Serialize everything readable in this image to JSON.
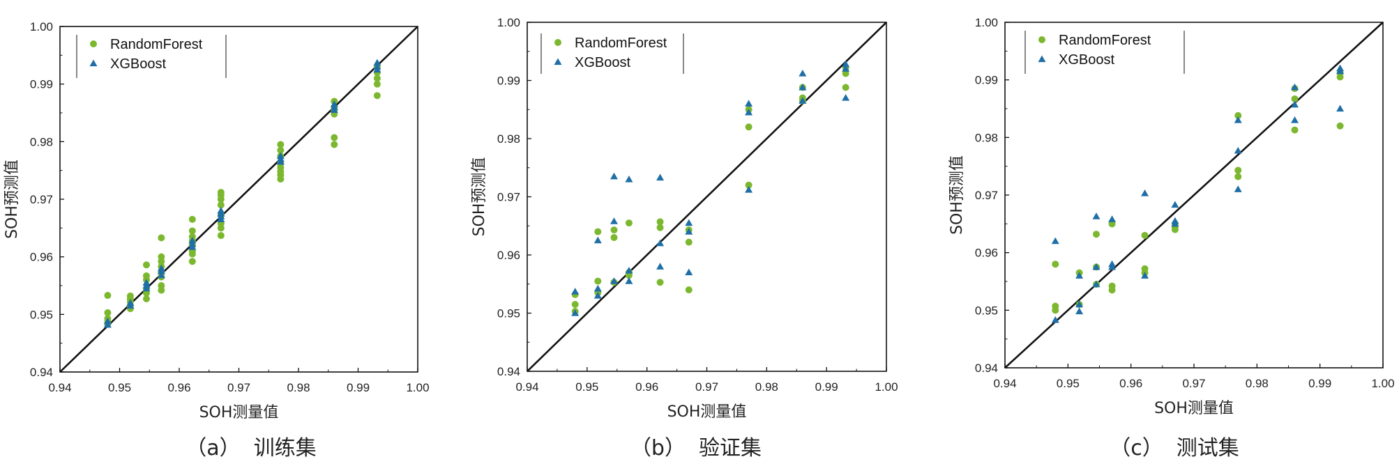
{
  "figure": {
    "captions": [
      "（a）  训练集",
      "（b）  验证集",
      "（c）  测试集"
    ]
  },
  "chart_data": [
    {
      "type": "scatter",
      "title": "",
      "xlabel": "SOH测量值",
      "ylabel": "SOH预测值",
      "xlim": [
        0.94,
        1.0
      ],
      "ylim": [
        0.94,
        1.0
      ],
      "xticks": [
        "0.94",
        "0.95",
        "0.96",
        "0.97",
        "0.98",
        "0.99",
        "1.00"
      ],
      "yticks": [
        "0.94",
        "0.95",
        "0.96",
        "0.97",
        "0.98",
        "0.99",
        "1.00"
      ],
      "reference_line": "y = x",
      "legend_position": "top-left",
      "grid": false,
      "series": [
        {
          "name": "RandomForest",
          "marker": "circle",
          "color": "#7cb82f",
          "points": [
            [
              0.948,
              0.9533
            ],
            [
              0.948,
              0.9503
            ],
            [
              0.948,
              0.9493
            ],
            [
              0.948,
              0.9487
            ],
            [
              0.948,
              0.9483
            ],
            [
              0.9518,
              0.9532
            ],
            [
              0.9518,
              0.9527
            ],
            [
              0.9518,
              0.9522
            ],
            [
              0.9518,
              0.9515
            ],
            [
              0.9518,
              0.951
            ],
            [
              0.9545,
              0.9586
            ],
            [
              0.9545,
              0.9567
            ],
            [
              0.9545,
              0.956
            ],
            [
              0.9545,
              0.9545
            ],
            [
              0.9545,
              0.9537
            ],
            [
              0.9545,
              0.9527
            ],
            [
              0.957,
              0.9633
            ],
            [
              0.957,
              0.96
            ],
            [
              0.957,
              0.9592
            ],
            [
              0.957,
              0.9583
            ],
            [
              0.957,
              0.9572
            ],
            [
              0.957,
              0.9565
            ],
            [
              0.957,
              0.955
            ],
            [
              0.957,
              0.9542
            ],
            [
              0.9622,
              0.9665
            ],
            [
              0.9622,
              0.9645
            ],
            [
              0.9622,
              0.9635
            ],
            [
              0.9622,
              0.9628
            ],
            [
              0.9622,
              0.962
            ],
            [
              0.9622,
              0.961
            ],
            [
              0.9622,
              0.9605
            ],
            [
              0.9622,
              0.9592
            ],
            [
              0.967,
              0.9712
            ],
            [
              0.967,
              0.9707
            ],
            [
              0.967,
              0.97
            ],
            [
              0.967,
              0.969
            ],
            [
              0.967,
              0.9672
            ],
            [
              0.967,
              0.9658
            ],
            [
              0.967,
              0.965
            ],
            [
              0.967,
              0.9637
            ],
            [
              0.977,
              0.9795
            ],
            [
              0.977,
              0.9785
            ],
            [
              0.977,
              0.9775
            ],
            [
              0.977,
              0.9762
            ],
            [
              0.977,
              0.9755
            ],
            [
              0.977,
              0.9748
            ],
            [
              0.977,
              0.9742
            ],
            [
              0.977,
              0.9735
            ],
            [
              0.986,
              0.987
            ],
            [
              0.986,
              0.986
            ],
            [
              0.986,
              0.9855
            ],
            [
              0.986,
              0.9848
            ],
            [
              0.986,
              0.9807
            ],
            [
              0.986,
              0.9795
            ],
            [
              0.9932,
              0.993
            ],
            [
              0.9932,
              0.992
            ],
            [
              0.9932,
              0.991
            ],
            [
              0.9932,
              0.99
            ],
            [
              0.9932,
              0.988
            ]
          ]
        },
        {
          "name": "XGBoost",
          "marker": "triangle",
          "color": "#1f6fa6",
          "points": [
            [
              0.948,
              0.9488
            ],
            [
              0.948,
              0.9482
            ],
            [
              0.9518,
              0.952
            ],
            [
              0.9518,
              0.9515
            ],
            [
              0.9545,
              0.9555
            ],
            [
              0.9545,
              0.955
            ],
            [
              0.9545,
              0.9545
            ],
            [
              0.957,
              0.958
            ],
            [
              0.957,
              0.9575
            ],
            [
              0.957,
              0.9568
            ],
            [
              0.9622,
              0.9628
            ],
            [
              0.9622,
              0.9622
            ],
            [
              0.9622,
              0.9617
            ],
            [
              0.967,
              0.968
            ],
            [
              0.967,
              0.9675
            ],
            [
              0.967,
              0.967
            ],
            [
              0.967,
              0.9665
            ],
            [
              0.977,
              0.9775
            ],
            [
              0.977,
              0.977
            ],
            [
              0.977,
              0.9765
            ],
            [
              0.986,
              0.9865
            ],
            [
              0.986,
              0.986
            ],
            [
              0.986,
              0.9855
            ],
            [
              0.9932,
              0.9937
            ],
            [
              0.9932,
              0.993
            ],
            [
              0.9932,
              0.9925
            ]
          ]
        }
      ]
    },
    {
      "type": "scatter",
      "title": "",
      "xlabel": "SOH测量值",
      "ylabel": "SOH预测值",
      "xlim": [
        0.94,
        1.0
      ],
      "ylim": [
        0.94,
        1.0
      ],
      "xticks": [
        "0.94",
        "0.95",
        "0.96",
        "0.97",
        "0.98",
        "0.99",
        "1.00"
      ],
      "yticks": [
        "0.94",
        "0.95",
        "0.96",
        "0.97",
        "0.98",
        "0.99",
        "1.00"
      ],
      "reference_line": "y = x",
      "legend_position": "top-left",
      "grid": false,
      "series": [
        {
          "name": "RandomForest",
          "marker": "circle",
          "color": "#7cb82f",
          "points": [
            [
              0.948,
              0.9532
            ],
            [
              0.948,
              0.9515
            ],
            [
              0.948,
              0.9503
            ],
            [
              0.9518,
              0.964
            ],
            [
              0.9518,
              0.9555
            ],
            [
              0.9518,
              0.9535
            ],
            [
              0.9545,
              0.9643
            ],
            [
              0.9545,
              0.963
            ],
            [
              0.9545,
              0.9553
            ],
            [
              0.957,
              0.9655
            ],
            [
              0.957,
              0.957
            ],
            [
              0.957,
              0.9565
            ],
            [
              0.9622,
              0.9657
            ],
            [
              0.9622,
              0.9647
            ],
            [
              0.9622,
              0.9553
            ],
            [
              0.967,
              0.9643
            ],
            [
              0.967,
              0.9622
            ],
            [
              0.967,
              0.954
            ],
            [
              0.977,
              0.985
            ],
            [
              0.977,
              0.982
            ],
            [
              0.977,
              0.972
            ],
            [
              0.986,
              0.9888
            ],
            [
              0.986,
              0.987
            ],
            [
              0.986,
              0.9865
            ],
            [
              0.9932,
              0.9922
            ],
            [
              0.9932,
              0.9912
            ],
            [
              0.9932,
              0.9888
            ]
          ]
        },
        {
          "name": "XGBoost",
          "marker": "triangle",
          "color": "#1f6fa6",
          "points": [
            [
              0.948,
              0.9537
            ],
            [
              0.948,
              0.95
            ],
            [
              0.9518,
              0.9625
            ],
            [
              0.9518,
              0.9542
            ],
            [
              0.9518,
              0.953
            ],
            [
              0.9545,
              0.9735
            ],
            [
              0.9545,
              0.9658
            ],
            [
              0.9545,
              0.9555
            ],
            [
              0.957,
              0.973
            ],
            [
              0.957,
              0.9573
            ],
            [
              0.957,
              0.9555
            ],
            [
              0.9622,
              0.9733
            ],
            [
              0.9622,
              0.962
            ],
            [
              0.9622,
              0.958
            ],
            [
              0.967,
              0.9655
            ],
            [
              0.967,
              0.964
            ],
            [
              0.967,
              0.957
            ],
            [
              0.977,
              0.986
            ],
            [
              0.977,
              0.9845
            ],
            [
              0.977,
              0.9712
            ],
            [
              0.986,
              0.9912
            ],
            [
              0.986,
              0.9888
            ],
            [
              0.986,
              0.9865
            ],
            [
              0.9932,
              0.9928
            ],
            [
              0.9932,
              0.992
            ],
            [
              0.9932,
              0.987
            ]
          ]
        }
      ]
    },
    {
      "type": "scatter",
      "title": "",
      "xlabel": "SOH测量值",
      "ylabel": "SOH预测值",
      "xlim": [
        0.94,
        1.0
      ],
      "ylim": [
        0.94,
        1.0
      ],
      "xticks": [
        "0.94",
        "0.95",
        "0.96",
        "0.97",
        "0.98",
        "0.99",
        "1.00"
      ],
      "yticks": [
        "0.94",
        "0.95",
        "0.96",
        "0.97",
        "0.98",
        "0.99",
        "1.00"
      ],
      "reference_line": "y = x",
      "legend_position": "top-left",
      "grid": false,
      "series": [
        {
          "name": "RandomForest",
          "marker": "circle",
          "color": "#7cb82f",
          "points": [
            [
              0.948,
              0.958
            ],
            [
              0.948,
              0.9507
            ],
            [
              0.948,
              0.95
            ],
            [
              0.9518,
              0.9565
            ],
            [
              0.9518,
              0.951
            ],
            [
              0.9545,
              0.9632
            ],
            [
              0.9545,
              0.9575
            ],
            [
              0.9545,
              0.9545
            ],
            [
              0.957,
              0.965
            ],
            [
              0.957,
              0.9542
            ],
            [
              0.957,
              0.9535
            ],
            [
              0.9622,
              0.963
            ],
            [
              0.9622,
              0.9572
            ],
            [
              0.9622,
              0.9565
            ],
            [
              0.967,
              0.965
            ],
            [
              0.967,
              0.9645
            ],
            [
              0.967,
              0.964
            ],
            [
              0.977,
              0.9838
            ],
            [
              0.977,
              0.9743
            ],
            [
              0.977,
              0.9732
            ],
            [
              0.986,
              0.9885
            ],
            [
              0.986,
              0.9867
            ],
            [
              0.986,
              0.9813
            ],
            [
              0.9932,
              0.9912
            ],
            [
              0.9932,
              0.9905
            ],
            [
              0.9932,
              0.982
            ]
          ]
        },
        {
          "name": "XGBoost",
          "marker": "triangle",
          "color": "#1f6fa6",
          "points": [
            [
              0.948,
              0.962
            ],
            [
              0.948,
              0.9483
            ],
            [
              0.9518,
              0.956
            ],
            [
              0.9518,
              0.951
            ],
            [
              0.9518,
              0.9498
            ],
            [
              0.9545,
              0.9663
            ],
            [
              0.9545,
              0.9575
            ],
            [
              0.9545,
              0.9545
            ],
            [
              0.957,
              0.9658
            ],
            [
              0.957,
              0.958
            ],
            [
              0.957,
              0.9575
            ],
            [
              0.9622,
              0.9703
            ],
            [
              0.9622,
              0.956
            ],
            [
              0.967,
              0.9683
            ],
            [
              0.967,
              0.9655
            ],
            [
              0.967,
              0.965
            ],
            [
              0.977,
              0.983
            ],
            [
              0.977,
              0.9777
            ],
            [
              0.977,
              0.971
            ],
            [
              0.986,
              0.9887
            ],
            [
              0.986,
              0.9857
            ],
            [
              0.986,
              0.983
            ],
            [
              0.9932,
              0.992
            ],
            [
              0.9932,
              0.9915
            ],
            [
              0.9932,
              0.985
            ]
          ]
        }
      ]
    }
  ]
}
